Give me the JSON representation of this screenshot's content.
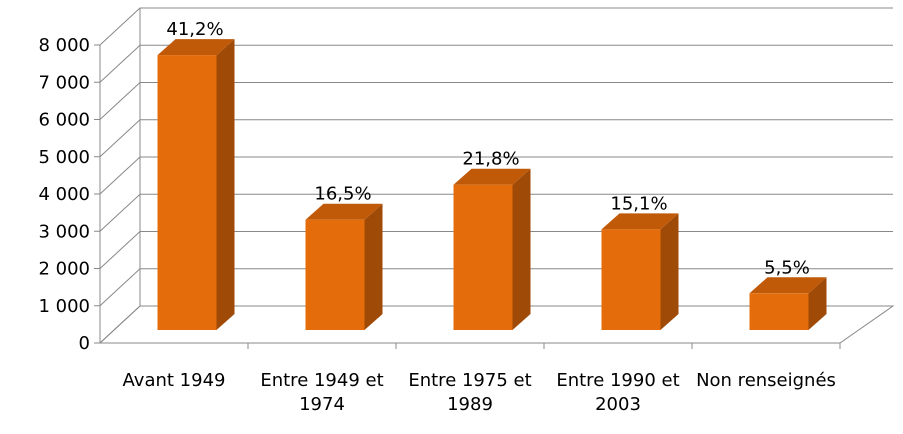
{
  "chart_data": {
    "type": "bar3d",
    "categories": [
      "Avant 1949",
      "Entre 1949 et 1974",
      "Entre 1975 et 1989",
      "Entre 1990 et 2003",
      "Non renseignés"
    ],
    "values": [
      7380,
      2960,
      3900,
      2700,
      985
    ],
    "value_labels": [
      "41,2%",
      "16,5%",
      "21,8%",
      "15,1%",
      "5,5%"
    ],
    "color": "#e46c0a",
    "ylim": [
      0,
      8000
    ],
    "yticks": [
      0,
      {
        "value": 1000,
        "label": "1 000"
      },
      {
        "value": 2000,
        "label": "2 000"
      },
      {
        "value": 3000,
        "label": "3 000"
      },
      {
        "value": 4000,
        "label": "4 000"
      },
      {
        "value": 5000,
        "label": "5 000"
      },
      {
        "value": 6000,
        "label": "6 000"
      },
      {
        "value": 7000,
        "label": "7 000"
      },
      {
        "value": 8000,
        "label": "8 000"
      }
    ],
    "grid": true
  }
}
